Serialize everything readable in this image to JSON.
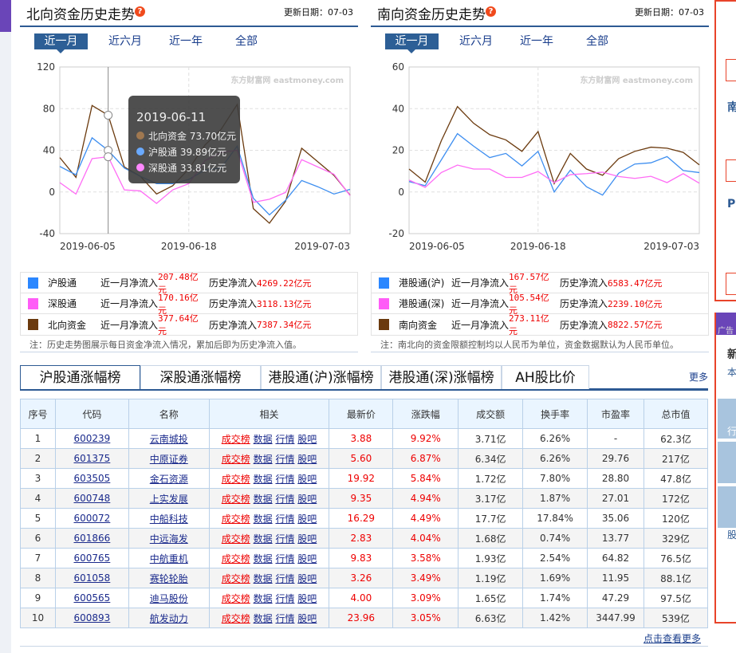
{
  "north": {
    "title": "北向资金历史走势",
    "help": "?",
    "date_label": "更新日期：07-03",
    "ranges": [
      "近一月",
      "近六月",
      "近一年",
      "全部"
    ],
    "legend": [
      {
        "name": "沪股通",
        "color": "#2b87ff",
        "month_label": "近一月净流入",
        "month": "207.48亿元",
        "hist_label": "历史净流入",
        "hist": "4269.22亿元"
      },
      {
        "name": "深股通",
        "color": "#ff5cf7",
        "month_label": "近一月净流入",
        "month": "170.16亿元",
        "hist_label": "历史净流入",
        "hist": "3118.13亿元"
      },
      {
        "name": "北向资金",
        "color": "#6b3a0e",
        "month_label": "近一月净流入",
        "month": "377.64亿元",
        "hist_label": "历史净流入",
        "hist": "7387.34亿元"
      }
    ],
    "note": "注：历史走势图展示每日资金净流入情况，累加后即为历史净流入值。",
    "tooltip": {
      "date": "2019-06-11",
      "items": [
        {
          "label": "北向资金 73.70亿元",
          "color": "#a07850"
        },
        {
          "label": "沪股通 39.89亿元",
          "color": "#6aaaff"
        },
        {
          "label": "深股通 33.81亿元",
          "color": "#ff88ff"
        }
      ],
      "index": 3
    }
  },
  "south": {
    "title": "南向资金历史走势",
    "help": "?",
    "date_label": "更新日期：07-03",
    "ranges": [
      "近一月",
      "近六月",
      "近一年",
      "全部"
    ],
    "legend": [
      {
        "name": "港股通(沪)",
        "color": "#2b87ff",
        "month_label": "近一月净流入",
        "month": "167.57亿元",
        "hist_label": "历史净流入",
        "hist": "6583.47亿元"
      },
      {
        "name": "港股通(深)",
        "color": "#ff5cf7",
        "month_label": "近一月净流入",
        "month": "105.54亿元",
        "hist_label": "历史净流入",
        "hist": "2239.10亿元"
      },
      {
        "name": "南向资金",
        "color": "#6b3a0e",
        "month_label": "近一月净流入",
        "month": "273.11亿元",
        "hist_label": "历史净流入",
        "hist": "8822.57亿元"
      }
    ],
    "note": "注：南北向的资金限额控制均以人民币为单位，资金数据默认为人民币单位。"
  },
  "chart_data": [
    {
      "type": "line",
      "title": "北向资金历史走势",
      "ylim": [
        -40,
        120
      ],
      "yticks": [
        120,
        80,
        40,
        0,
        -40
      ],
      "xticks": [
        {
          "i": 0,
          "label": "2019-06-05"
        },
        {
          "i": 8,
          "label": "2019-06-18"
        },
        {
          "i": 18,
          "label": "2019-07-03"
        }
      ],
      "watermark": "东方财富网 eastmoney.com",
      "series": [
        {
          "name": "北向资金",
          "color": "#6b3a0e",
          "values": [
            33,
            14,
            83,
            73.7,
            24,
            15,
            -2,
            6,
            22,
            45,
            60,
            84,
            -16,
            -30,
            -9,
            42,
            29,
            16,
            -3
          ]
        },
        {
          "name": "沪股通",
          "color": "#3d8ef0",
          "values": [
            24.5,
            16.5,
            52,
            39.89,
            23,
            15,
            8,
            8,
            12,
            21,
            23,
            44,
            -6,
            -22,
            -8,
            11,
            5,
            -2,
            2.5
          ]
        },
        {
          "name": "深股通",
          "color": "#ff6cf5",
          "values": [
            9,
            -2,
            32,
            33.81,
            2,
            1,
            -11,
            2,
            8,
            30,
            38,
            40,
            -10,
            -7,
            -0.5,
            31,
            24,
            17,
            -3.5
          ]
        }
      ]
    },
    {
      "type": "line",
      "title": "南向资金历史走势",
      "ylim": [
        -20,
        60
      ],
      "yticks": [
        60,
        40,
        20,
        0,
        -20
      ],
      "xticks": [
        {
          "i": 0,
          "label": "2019-06-05"
        },
        {
          "i": 8,
          "label": "2019-06-18"
        },
        {
          "i": 18,
          "label": "2019-07-03"
        }
      ],
      "watermark": "东方财富网 eastmoney.com",
      "series": [
        {
          "name": "南向资金",
          "color": "#6b3a0e",
          "values": [
            11,
            4.7,
            24.6,
            41,
            33,
            27.5,
            25,
            19.5,
            29,
            4,
            18.5,
            11,
            8,
            16,
            19.5,
            21.5,
            21,
            19,
            13
          ]
        },
        {
          "name": "港股通(沪)",
          "color": "#3d8ef0",
          "values": [
            5,
            3,
            15.4,
            28,
            22,
            16.5,
            18.5,
            12.5,
            19.5,
            0,
            10.5,
            2.5,
            -1.5,
            9,
            13.4,
            14,
            17,
            10.3,
            9.3
          ]
        },
        {
          "name": "港股通(深)",
          "color": "#ff6cf5",
          "values": [
            5.7,
            2.2,
            9.3,
            12.9,
            11,
            11,
            7,
            7,
            9.8,
            4.5,
            8.3,
            8.8,
            9.5,
            7.4,
            6.5,
            7.5,
            4.5,
            8.8,
            4.2
          ]
        }
      ]
    }
  ],
  "rank": {
    "tabs": [
      "沪股通涨幅榜",
      "深股通涨幅榜",
      "港股通(沪)涨幅榜",
      "港股通(深)涨幅榜",
      "AH股比价"
    ],
    "more": "更多",
    "headers": [
      "序号",
      "代码",
      "名称",
      "相关",
      "最新价",
      "涨跌幅",
      "成交额",
      "换手率",
      "市盈率",
      "总市值"
    ],
    "links": [
      "成交榜",
      "数据",
      "行情",
      "股吧"
    ],
    "rows": [
      [
        "1",
        "600239",
        "云南城投",
        "3.88",
        "9.92%",
        "3.71亿",
        "6.26%",
        "-",
        "62.3亿"
      ],
      [
        "2",
        "601375",
        "中原证券",
        "5.60",
        "6.87%",
        "6.34亿",
        "6.26%",
        "29.76",
        "217亿"
      ],
      [
        "3",
        "603505",
        "金石资源",
        "19.92",
        "5.84%",
        "1.72亿",
        "7.80%",
        "28.80",
        "47.8亿"
      ],
      [
        "4",
        "600748",
        "上实发展",
        "9.35",
        "4.94%",
        "3.17亿",
        "1.87%",
        "27.01",
        "172亿"
      ],
      [
        "5",
        "600072",
        "中船科技",
        "16.29",
        "4.49%",
        "17.7亿",
        "17.84%",
        "35.06",
        "120亿"
      ],
      [
        "6",
        "601866",
        "中远海发",
        "2.83",
        "4.04%",
        "1.68亿",
        "0.74%",
        "13.77",
        "329亿"
      ],
      [
        "7",
        "600765",
        "中航重机",
        "9.83",
        "3.58%",
        "1.93亿",
        "2.54%",
        "64.82",
        "76.5亿"
      ],
      [
        "8",
        "601058",
        "赛轮轮胎",
        "3.26",
        "3.49%",
        "1.19亿",
        "1.69%",
        "11.95",
        "88.1亿"
      ],
      [
        "9",
        "600565",
        "迪马股份",
        "4.00",
        "3.09%",
        "1.65亿",
        "1.74%",
        "47.29",
        "97.5亿"
      ],
      [
        "10",
        "600893",
        "航发动力",
        "23.96",
        "3.05%",
        "6.63亿",
        "1.42%",
        "3447.99",
        "539亿"
      ]
    ],
    "view_more": "点击查看更多"
  },
  "side": {
    "t1": "南",
    "t2": "P",
    "ad": "广告",
    "t3": "新",
    "t4": "本",
    "b1": "行",
    "b3": "股"
  }
}
